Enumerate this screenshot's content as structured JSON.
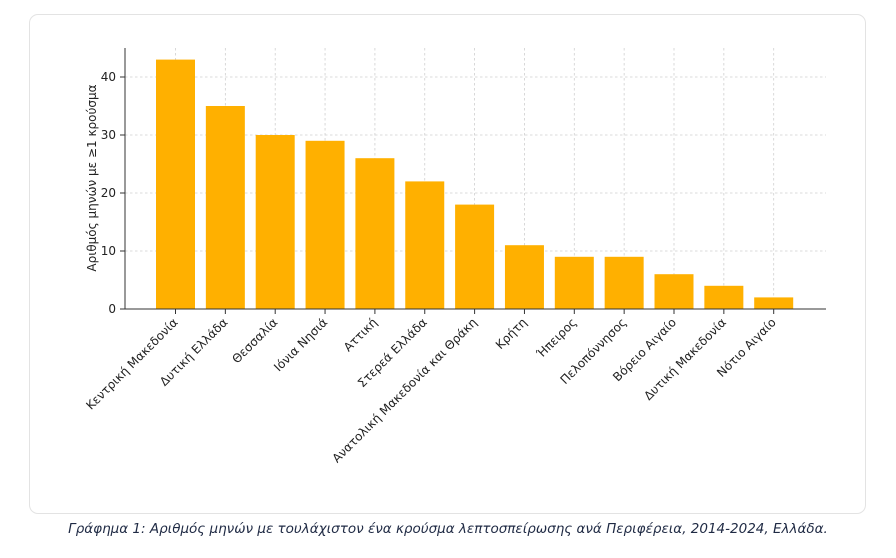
{
  "chart_data": {
    "type": "bar",
    "title": "",
    "xlabel": "",
    "ylabel": "Αριθμός μηνών με ≥1 κρούσμα",
    "ylim": [
      0,
      45
    ],
    "yticks": [
      0,
      10,
      20,
      30,
      40
    ],
    "grid": true,
    "bar_color": "#ffb000",
    "categories": [
      "Κεντρική Μακεδονία",
      "Δυτική Ελλάδα",
      "Θεσσαλία",
      "Ιόνια Νησιά",
      "Αττική",
      "Στερεά Ελλάδα",
      "Ανατολική Μακεδονία και Θράκη",
      "Κρήτη",
      "Ήπειρος",
      "Πελοπόννησος",
      "Βόρειο Αιγαίο",
      "Δυτική Μακεδονία",
      "Νότιο Αιγαίο"
    ],
    "values": [
      43,
      35,
      30,
      29,
      26,
      22,
      18,
      11,
      9,
      9,
      6,
      4,
      2
    ]
  },
  "caption": "Γράφημα 1: Αριθμός μηνών με τουλάχιστον ένα κρούσμα λεπτοσπείρωσης ανά Περιφέρεια, 2014-2024, Ελλάδα."
}
